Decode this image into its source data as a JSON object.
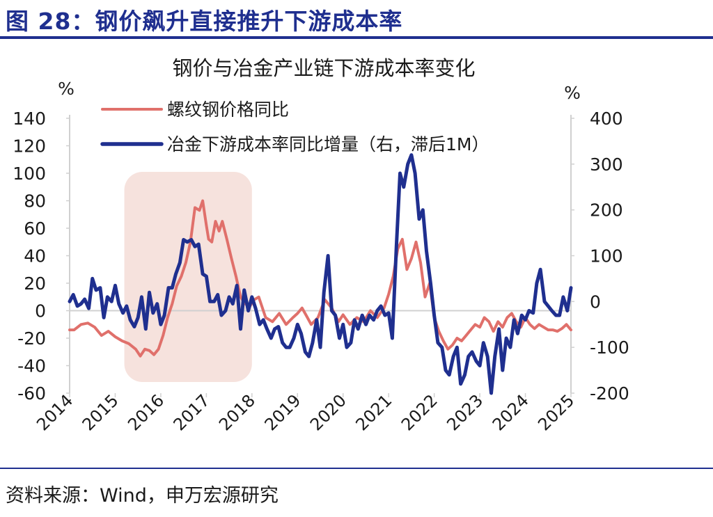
{
  "figure": {
    "title": "图 28：钢价飙升直接推升下游成本率",
    "source": "资料来源：Wind，申万宏源研究"
  },
  "chart_data": {
    "type": "line",
    "title": "钢价与冶金产业链下游成本率变化",
    "y_left_unit": "%",
    "y_right_unit": "%",
    "y_left_lim": [
      -60,
      140
    ],
    "y_right_lim": [
      -200,
      400
    ],
    "y_left_ticks": [
      "140",
      "120",
      "100",
      "80",
      "60",
      "40",
      "20",
      "0",
      "-20",
      "-40",
      "-60"
    ],
    "y_right_ticks": [
      "400",
      "300",
      "200",
      "100",
      "0",
      "-100",
      "-200"
    ],
    "x_lim": [
      2014,
      2025
    ],
    "x_ticks": [
      "2014",
      "2015",
      "2016",
      "2017",
      "2018",
      "2019",
      "2020",
      "2021",
      "2022",
      "2023",
      "2024",
      "2025"
    ],
    "highlight_period": [
      2015.2,
      2018.0
    ],
    "colors": {
      "series1": "#e0706b",
      "series2": "#1f2f8f",
      "highlight": "#f6e2dd",
      "axis": "#d0d0d0"
    },
    "series": [
      {
        "name": "螺纹钢价格同比",
        "axis": "left",
        "x": [
          2014.0,
          2014.1,
          2014.25,
          2014.4,
          2014.55,
          2014.7,
          2014.85,
          2015.0,
          2015.15,
          2015.3,
          2015.45,
          2015.55,
          2015.65,
          2015.75,
          2015.85,
          2015.95,
          2016.05,
          2016.15,
          2016.25,
          2016.35,
          2016.45,
          2016.55,
          2016.65,
          2016.75,
          2016.85,
          2016.92,
          2017.0,
          2017.05,
          2017.12,
          2017.2,
          2017.28,
          2017.35,
          2017.45,
          2017.55,
          2017.65,
          2017.75,
          2017.85,
          2017.95,
          2018.05,
          2018.15,
          2018.3,
          2018.45,
          2018.6,
          2018.75,
          2018.9,
          2019.0,
          2019.1,
          2019.2,
          2019.3,
          2019.45,
          2019.6,
          2019.75,
          2019.9,
          2020.0,
          2020.15,
          2020.3,
          2020.45,
          2020.6,
          2020.75,
          2020.9,
          2021.0,
          2021.1,
          2021.2,
          2021.3,
          2021.4,
          2021.5,
          2021.6,
          2021.7,
          2021.8,
          2021.9,
          2022.0,
          2022.1,
          2022.2,
          2022.3,
          2022.4,
          2022.5,
          2022.6,
          2022.7,
          2022.8,
          2022.9,
          2023.0,
          2023.1,
          2023.2,
          2023.3,
          2023.4,
          2023.5,
          2023.6,
          2023.7,
          2023.8,
          2023.9,
          2024.0,
          2024.1,
          2024.2,
          2024.3,
          2024.4,
          2024.5,
          2024.6,
          2024.7,
          2024.8,
          2024.9,
          2025.0
        ],
        "values": [
          -14,
          -14,
          -10,
          -9,
          -12,
          -18,
          -15,
          -19,
          -22,
          -24,
          -28,
          -33,
          -28,
          -29,
          -32,
          -28,
          -18,
          -5,
          5,
          18,
          25,
          35,
          50,
          75,
          73,
          80,
          62,
          52,
          50,
          65,
          58,
          65,
          52,
          38,
          25,
          10,
          5,
          3,
          8,
          10,
          -5,
          -8,
          -2,
          -10,
          -5,
          -2,
          2,
          -4,
          -10,
          -5,
          8,
          2,
          -8,
          -3,
          -10,
          -5,
          -8,
          0,
          -5,
          2,
          12,
          25,
          45,
          52,
          30,
          38,
          50,
          35,
          10,
          20,
          -5,
          -15,
          -22,
          -28,
          -25,
          -20,
          -22,
          -18,
          -14,
          -10,
          -12,
          -5,
          -8,
          -15,
          -8,
          -12,
          -5,
          -2,
          -8,
          -12,
          -5,
          -10,
          -13,
          -10,
          -12,
          -14,
          -14,
          -15,
          -13,
          -10,
          -14
        ]
      },
      {
        "name": "冶金下游成本率同比增量（右，滞后1M）",
        "axis": "right",
        "x": [
          2014.0,
          2014.08,
          2014.17,
          2014.25,
          2014.33,
          2014.42,
          2014.5,
          2014.58,
          2014.67,
          2014.75,
          2014.83,
          2014.92,
          2015.0,
          2015.08,
          2015.17,
          2015.25,
          2015.33,
          2015.42,
          2015.5,
          2015.58,
          2015.67,
          2015.75,
          2015.83,
          2015.92,
          2016.0,
          2016.08,
          2016.17,
          2016.25,
          2016.33,
          2016.42,
          2016.5,
          2016.58,
          2016.67,
          2016.75,
          2016.83,
          2016.92,
          2017.0,
          2017.08,
          2017.17,
          2017.25,
          2017.33,
          2017.42,
          2017.5,
          2017.58,
          2017.67,
          2017.75,
          2017.83,
          2017.92,
          2018.0,
          2018.08,
          2018.17,
          2018.25,
          2018.33,
          2018.42,
          2018.5,
          2018.58,
          2018.67,
          2018.75,
          2018.83,
          2018.92,
          2019.0,
          2019.08,
          2019.17,
          2019.25,
          2019.33,
          2019.42,
          2019.5,
          2019.58,
          2019.67,
          2019.75,
          2019.83,
          2019.92,
          2020.0,
          2020.08,
          2020.17,
          2020.25,
          2020.33,
          2020.42,
          2020.5,
          2020.58,
          2020.67,
          2020.75,
          2020.83,
          2020.92,
          2021.0,
          2021.08,
          2021.17,
          2021.25,
          2021.33,
          2021.42,
          2021.5,
          2021.58,
          2021.67,
          2021.75,
          2021.83,
          2021.92,
          2022.0,
          2022.08,
          2022.17,
          2022.25,
          2022.33,
          2022.42,
          2022.5,
          2022.58,
          2022.67,
          2022.75,
          2022.83,
          2022.92,
          2023.0,
          2023.08,
          2023.17,
          2023.25,
          2023.33,
          2023.42,
          2023.5,
          2023.58,
          2023.67,
          2023.75,
          2023.83,
          2023.92,
          2024.0,
          2024.08,
          2024.17,
          2024.25,
          2024.33,
          2024.42,
          2024.5,
          2024.58,
          2024.67,
          2024.75,
          2024.83,
          2024.92,
          2025.0
        ],
        "values": [
          0,
          15,
          -10,
          -5,
          5,
          -15,
          50,
          25,
          30,
          -35,
          10,
          0,
          35,
          -5,
          -25,
          -10,
          -40,
          -55,
          -35,
          10,
          -60,
          20,
          -25,
          -5,
          -50,
          -30,
          30,
          30,
          60,
          85,
          135,
          130,
          135,
          120,
          125,
          60,
          55,
          0,
          0,
          15,
          -30,
          -20,
          10,
          -5,
          35,
          -60,
          25,
          -20,
          10,
          -15,
          -50,
          -40,
          -60,
          -80,
          -60,
          -55,
          -90,
          -100,
          -100,
          -80,
          -50,
          -70,
          -110,
          -120,
          -90,
          -40,
          -100,
          20,
          100,
          -20,
          -30,
          -80,
          -50,
          -100,
          -90,
          -40,
          -60,
          -30,
          -50,
          -30,
          -40,
          -20,
          -10,
          -30,
          -25,
          -80,
          120,
          280,
          250,
          300,
          320,
          280,
          180,
          200,
          110,
          40,
          -30,
          -90,
          -100,
          -150,
          -160,
          -120,
          -100,
          -180,
          -160,
          -120,
          -110,
          -130,
          -140,
          -90,
          -120,
          -200,
          -120,
          -60,
          -150,
          -80,
          -100,
          -40,
          -70,
          -30,
          -40,
          -20,
          -25,
          40,
          70,
          0,
          -10,
          -20,
          -30,
          -30,
          10,
          -20,
          30
        ]
      }
    ]
  }
}
